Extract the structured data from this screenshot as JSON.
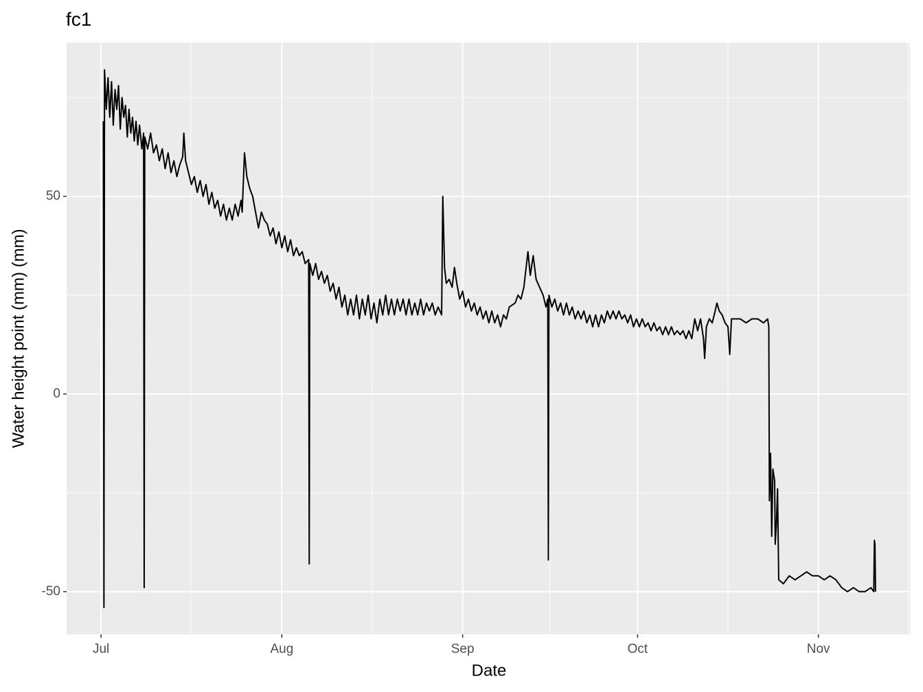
{
  "chart_data": {
    "type": "line",
    "title": "fc1",
    "x_label": "Date",
    "y_label": "Water height point (mm) (mm)",
    "xlim": [
      -5.9,
      138.7
    ],
    "ylim": [
      -60.8,
      88.9
    ],
    "xticks": [
      {
        "value": 0,
        "label": "Jul"
      },
      {
        "value": 31,
        "label": "Aug"
      },
      {
        "value": 62,
        "label": "Sep"
      },
      {
        "value": 92,
        "label": "Oct"
      },
      {
        "value": 123,
        "label": "Nov"
      }
    ],
    "xminor": [
      15.4,
      46.4,
      76.9,
      107.5,
      138.4
    ],
    "yticks": [
      -50,
      0,
      50
    ],
    "yminor": [
      -25,
      25,
      75
    ],
    "grid": true,
    "background": "#ebebeb",
    "color": "#000000",
    "x": [
      0.4,
      0.5,
      0.6,
      0.9,
      1.2,
      1.5,
      1.8,
      2.1,
      2.4,
      2.7,
      3.0,
      3.3,
      3.6,
      3.9,
      4.2,
      4.5,
      4.8,
      5.1,
      5.4,
      5.7,
      6.0,
      6.3,
      6.6,
      7.0,
      7.3,
      7.4,
      7.5,
      8.0,
      8.5,
      9.0,
      9.5,
      10.0,
      10.5,
      11,
      11.5,
      12,
      12.5,
      13,
      13.5,
      14,
      14.2,
      14.5,
      15,
      15.5,
      16,
      16.5,
      17,
      17.5,
      18,
      18.5,
      19,
      19.5,
      20,
      20.5,
      21,
      21.5,
      22,
      22.5,
      23,
      23.5,
      24,
      24.2,
      24.6,
      25,
      25.5,
      26,
      26.5,
      27,
      27.5,
      28,
      28.5,
      29,
      29.5,
      30,
      30.5,
      31,
      31.5,
      32,
      32.5,
      33,
      33.5,
      34,
      34.5,
      35,
      35.6,
      35.7,
      35.8,
      36.3,
      36.8,
      37.3,
      37.8,
      38.3,
      38.8,
      39.3,
      39.8,
      40.3,
      40.8,
      41.3,
      41.8,
      42.3,
      42.8,
      43.3,
      43.8,
      44.3,
      44.8,
      45.3,
      45.8,
      46.3,
      46.8,
      47.3,
      47.8,
      48.3,
      48.8,
      49.3,
      49.8,
      50.3,
      50.8,
      51.3,
      51.8,
      52.3,
      52.8,
      53.3,
      53.8,
      54.3,
      54.8,
      55.3,
      55.8,
      56.3,
      56.8,
      57.3,
      57.8,
      58.4,
      58.6,
      58.9,
      59.2,
      59.7,
      60.2,
      60.6,
      61,
      61.5,
      62,
      62.5,
      63,
      63.5,
      64,
      64.5,
      65,
      65.5,
      66,
      66.5,
      67,
      67.5,
      68,
      68.5,
      69,
      69.5,
      70,
      71,
      71.5,
      72,
      72.5,
      73.2,
      73.6,
      74.1,
      74.6,
      75.2,
      75.8,
      76.3,
      76.6,
      76.7,
      76.8,
      77.3,
      77.8,
      78.3,
      78.8,
      79.3,
      79.8,
      80.3,
      80.8,
      81.3,
      81.8,
      82.3,
      82.8,
      83.3,
      83.8,
      84.3,
      84.8,
      85.3,
      85.8,
      86.3,
      86.8,
      87.3,
      87.8,
      88.3,
      88.8,
      89.3,
      89.8,
      90.3,
      90.8,
      91.3,
      91.8,
      92.3,
      92.8,
      93.3,
      93.8,
      94.3,
      94.8,
      95.3,
      95.8,
      96.3,
      96.8,
      97.3,
      97.8,
      98.3,
      98.8,
      99.3,
      99.8,
      100.3,
      100.8,
      101.3,
      101.8,
      102.3,
      102.8,
      103.3,
      103.5,
      103.8,
      104.3,
      104.8,
      105.3,
      105.6,
      106,
      106.5,
      107,
      107.5,
      107.8,
      108.1,
      108.6,
      109.6,
      110.6,
      111.6,
      112.6,
      113.6,
      114.3,
      114.5,
      114.6,
      114.8,
      115,
      115.2,
      115.5,
      115.6,
      115.8,
      116,
      116.2,
      117,
      118,
      119,
      120,
      121,
      122,
      123,
      124,
      125,
      126,
      127,
      128,
      129,
      130,
      131,
      132,
      132.5,
      132.6,
      132.7,
      132.8
    ],
    "values": [
      69,
      -54,
      82,
      72,
      80,
      70,
      79,
      68,
      77,
      72,
      78,
      67,
      75,
      70,
      73,
      65,
      72,
      66,
      70,
      64,
      69,
      63,
      68,
      62,
      66,
      -49,
      65,
      62,
      66,
      61,
      63,
      59,
      62,
      57,
      61,
      56,
      59,
      55,
      58,
      60,
      66,
      59,
      56,
      53,
      55,
      51,
      54,
      50,
      53,
      48,
      51,
      47,
      49,
      45,
      48,
      44,
      47,
      44,
      48,
      45,
      49,
      46,
      61,
      55,
      52,
      50,
      46,
      42,
      46,
      44,
      43,
      40,
      42,
      38,
      41,
      37,
      40,
      36,
      39,
      35,
      37,
      35,
      36,
      33,
      34,
      -43,
      33,
      30,
      33,
      29,
      31,
      28,
      30,
      26,
      28,
      24,
      27,
      22,
      25,
      20,
      24,
      20,
      25,
      19,
      24,
      20,
      25,
      19,
      23,
      18,
      24,
      20,
      25,
      20,
      24,
      20,
      24,
      21,
      24,
      20,
      24,
      20,
      23,
      20,
      24,
      20,
      23,
      21,
      23,
      20,
      22,
      20,
      50,
      32,
      28,
      29,
      27,
      32,
      28,
      24,
      26,
      22,
      24,
      21,
      23,
      20,
      22,
      19,
      21,
      18,
      21,
      18,
      20,
      17,
      20,
      19,
      22,
      23,
      25,
      24,
      27,
      36,
      30,
      35,
      29,
      27,
      25,
      22,
      24,
      -42,
      25,
      22,
      24,
      21,
      23,
      20,
      23,
      20,
      22,
      19,
      21,
      19,
      21,
      18,
      20,
      17,
      20,
      17,
      20,
      18,
      21,
      19,
      21,
      19,
      21,
      19,
      20,
      18,
      20,
      17,
      19,
      17,
      19,
      17,
      18,
      16,
      18,
      16,
      17,
      15,
      17,
      15,
      17,
      15,
      16,
      15,
      16,
      14,
      16,
      14,
      19,
      16,
      19,
      14,
      9,
      17,
      19,
      18,
      21,
      23,
      21,
      20,
      18,
      17,
      10,
      19,
      19,
      19,
      18,
      19,
      19,
      18,
      19,
      17,
      -27,
      -15,
      -36,
      -19,
      -22,
      -38,
      -33,
      -24,
      -47,
      -48,
      -46,
      -47,
      -46,
      -45,
      -46,
      -46,
      -47,
      -46,
      -47,
      -49,
      -50,
      -49,
      -50,
      -50,
      -49,
      -50,
      -37,
      -38,
      -50
    ]
  }
}
